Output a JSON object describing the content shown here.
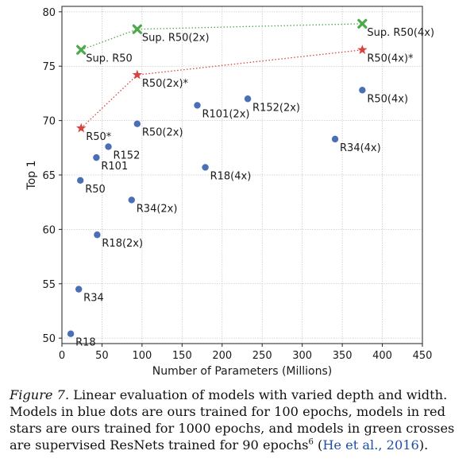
{
  "chart_data": {
    "type": "scatter",
    "xlabel": "Number of Parameters (Millions)",
    "ylabel": "Top 1",
    "xlim": [
      0,
      450
    ],
    "ylim": [
      49.5,
      80.5
    ],
    "xticks": [
      0,
      50,
      100,
      150,
      200,
      250,
      300,
      350,
      400,
      450
    ],
    "yticks": [
      50,
      55,
      60,
      65,
      70,
      75,
      80
    ],
    "grid": true,
    "series": [
      {
        "marker": "circle",
        "color": "#4a6fb5",
        "points": [
          {
            "x": 11,
            "y": 50.4,
            "label": "R18"
          },
          {
            "x": 21,
            "y": 54.5,
            "label": "R34"
          },
          {
            "x": 23,
            "y": 64.5,
            "label": "R50"
          },
          {
            "x": 43,
            "y": 66.6,
            "label": "R101"
          },
          {
            "x": 58,
            "y": 67.6,
            "label": "R152"
          },
          {
            "x": 44,
            "y": 59.5,
            "label": "R18(2x)"
          },
          {
            "x": 87,
            "y": 62.7,
            "label": "R34(2x)"
          },
          {
            "x": 94,
            "y": 69.7,
            "label": "R50(2x)"
          },
          {
            "x": 169,
            "y": 71.4,
            "label": "R101(2x)"
          },
          {
            "x": 232,
            "y": 72.0,
            "label": "R152(2x)"
          },
          {
            "x": 179,
            "y": 65.7,
            "label": "R18(4x)"
          },
          {
            "x": 341,
            "y": 68.3,
            "label": "R34(4x)"
          },
          {
            "x": 375,
            "y": 72.8,
            "label": "R50(4x)"
          }
        ]
      },
      {
        "marker": "star",
        "color": "#d9433f",
        "connected": true,
        "points": [
          {
            "x": 24,
            "y": 69.3,
            "label": "R50*"
          },
          {
            "x": 94,
            "y": 74.2,
            "label": "R50(2x)*"
          },
          {
            "x": 375,
            "y": 76.5,
            "label": "R50(4x)*"
          }
        ]
      },
      {
        "marker": "cross",
        "color": "#4caa4c",
        "connected": true,
        "points": [
          {
            "x": 24,
            "y": 76.5,
            "label": "Sup. R50"
          },
          {
            "x": 94,
            "y": 78.4,
            "label": "Sup. R50(2x)"
          },
          {
            "x": 375,
            "y": 78.9,
            "label": "Sup. R50(4x)"
          }
        ]
      }
    ]
  },
  "caption": {
    "figure_label": "Figure 7.",
    "text": " Linear evaluation of models with varied depth and width. Models in blue dots are ours trained for 100 epochs, models in red stars are ours trained for 1000 epochs, and models in green crosses are supervised ResNets trained for 90 epochs",
    "footnote_mark": "6",
    "citation": "He et al., 2016",
    "open_paren": " (",
    "close_paren": ")."
  }
}
